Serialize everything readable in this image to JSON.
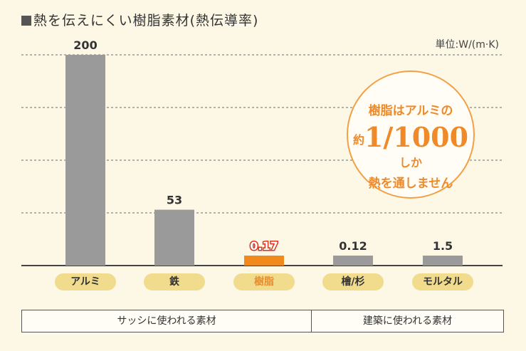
{
  "title": "熱を伝えにくい樹脂素材(熱伝導率)",
  "unit_label": "単位:W/(m·K)",
  "chart_data": {
    "type": "bar",
    "categories": [
      "アルミ",
      "鉄",
      "樹脂",
      "檜/杉",
      "モルタル"
    ],
    "values": [
      200,
      53,
      0.17,
      0.12,
      1.5
    ],
    "value_labels": [
      "200",
      "53",
      "0.17",
      "0.12",
      "1.5"
    ],
    "highlight_index": 2,
    "colors": {
      "bar": "#9a9a9a",
      "highlight": "#f08a1c",
      "pill": "#f1dc8e",
      "accent": "#ee8a2a"
    },
    "grid": true,
    "ylim": [
      0,
      200
    ]
  },
  "callout": {
    "line1": "樹脂はアルミの",
    "line2_prefix": "約",
    "line2_big": "1/1000",
    "line2_suffix": "しか",
    "line3": "熱を通しません"
  },
  "groups": [
    {
      "label": "サッシに使われる素材"
    },
    {
      "label": "建築に使われる素材"
    }
  ]
}
